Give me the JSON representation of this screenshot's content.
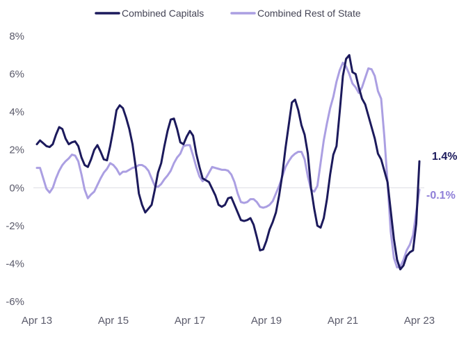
{
  "chart_data": {
    "type": "line",
    "title": "",
    "xlabel": "",
    "ylabel": "",
    "ylim": [
      -6,
      8
    ],
    "y_ticks": [
      "8%",
      "6%",
      "4%",
      "2%",
      "0%",
      "-2%",
      "-4%",
      "-6%"
    ],
    "x_ticks": [
      "Apr 13",
      "Apr 15",
      "Apr 17",
      "Apr 19",
      "Apr 21",
      "Apr 23"
    ],
    "grid": false,
    "legend_position": "top-center",
    "series": [
      {
        "name": "Combined Capitals",
        "color": "#1c1a5c",
        "end_label": "1.4%",
        "points": [
          [
            0,
            2.3
          ],
          [
            1,
            2.5
          ],
          [
            2,
            2.35
          ],
          [
            3,
            2.2
          ],
          [
            4,
            2.15
          ],
          [
            5,
            2.3
          ],
          [
            6,
            2.8
          ],
          [
            7,
            3.2
          ],
          [
            8,
            3.1
          ],
          [
            9,
            2.6
          ],
          [
            10,
            2.3
          ],
          [
            11,
            2.4
          ],
          [
            12,
            2.45
          ],
          [
            13,
            2.2
          ],
          [
            14,
            1.6
          ],
          [
            15,
            1.2
          ],
          [
            16,
            1.1
          ],
          [
            17,
            1.5
          ],
          [
            18,
            2.0
          ],
          [
            19,
            2.25
          ],
          [
            20,
            1.9
          ],
          [
            21,
            1.5
          ],
          [
            22,
            1.45
          ],
          [
            23,
            2.2
          ],
          [
            24,
            3.1
          ],
          [
            25,
            4.1
          ],
          [
            26,
            4.35
          ],
          [
            27,
            4.2
          ],
          [
            28,
            3.7
          ],
          [
            29,
            3.1
          ],
          [
            30,
            2.3
          ],
          [
            31,
            1.1
          ],
          [
            32,
            -0.3
          ],
          [
            33,
            -0.9
          ],
          [
            34,
            -1.3
          ],
          [
            35,
            -1.1
          ],
          [
            36,
            -0.9
          ],
          [
            37,
            -0.1
          ],
          [
            38,
            0.8
          ],
          [
            39,
            1.3
          ],
          [
            40,
            2.2
          ],
          [
            41,
            3.0
          ],
          [
            42,
            3.6
          ],
          [
            43,
            3.65
          ],
          [
            44,
            3.1
          ],
          [
            45,
            2.4
          ],
          [
            46,
            2.3
          ],
          [
            47,
            2.7
          ],
          [
            48,
            3.0
          ],
          [
            49,
            2.75
          ],
          [
            50,
            1.8
          ],
          [
            51,
            1.1
          ],
          [
            52,
            0.5
          ],
          [
            53,
            0.4
          ],
          [
            54,
            0.3
          ],
          [
            55,
            -0.05
          ],
          [
            56,
            -0.4
          ],
          [
            57,
            -0.9
          ],
          [
            58,
            -1.0
          ],
          [
            59,
            -0.9
          ],
          [
            60,
            -0.55
          ],
          [
            61,
            -0.5
          ],
          [
            62,
            -0.9
          ],
          [
            63,
            -1.3
          ],
          [
            64,
            -1.7
          ],
          [
            65,
            -1.75
          ],
          [
            66,
            -1.7
          ],
          [
            67,
            -1.6
          ],
          [
            68,
            -1.95
          ],
          [
            69,
            -2.6
          ],
          [
            70,
            -3.3
          ],
          [
            71,
            -3.25
          ],
          [
            72,
            -2.8
          ],
          [
            73,
            -2.2
          ],
          [
            74,
            -1.8
          ],
          [
            75,
            -1.3
          ],
          [
            76,
            -0.4
          ],
          [
            77,
            0.7
          ],
          [
            78,
            2.1
          ],
          [
            79,
            3.3
          ],
          [
            80,
            4.5
          ],
          [
            81,
            4.65
          ],
          [
            82,
            4.1
          ],
          [
            83,
            3.3
          ],
          [
            84,
            2.8
          ],
          [
            85,
            1.8
          ],
          [
            86,
            0.0
          ],
          [
            87,
            -1.1
          ],
          [
            88,
            -2.0
          ],
          [
            89,
            -2.1
          ],
          [
            90,
            -1.6
          ],
          [
            91,
            -0.6
          ],
          [
            92,
            0.7
          ],
          [
            93,
            1.75
          ],
          [
            94,
            2.2
          ],
          [
            95,
            4.0
          ],
          [
            96,
            5.9
          ],
          [
            97,
            6.8
          ],
          [
            98,
            7.0
          ],
          [
            99,
            6.1
          ],
          [
            100,
            6.0
          ],
          [
            101,
            5.3
          ],
          [
            102,
            4.7
          ],
          [
            103,
            4.4
          ],
          [
            104,
            3.8
          ],
          [
            105,
            3.2
          ],
          [
            106,
            2.6
          ],
          [
            107,
            1.8
          ],
          [
            108,
            1.5
          ],
          [
            109,
            0.9
          ],
          [
            110,
            0.3
          ],
          [
            111,
            -1.2
          ],
          [
            112,
            -2.7
          ],
          [
            113,
            -3.8
          ],
          [
            114,
            -4.3
          ],
          [
            115,
            -4.1
          ],
          [
            116,
            -3.6
          ],
          [
            117,
            -3.4
          ],
          [
            118,
            -3.3
          ],
          [
            119,
            -1.9
          ],
          [
            120,
            1.4
          ]
        ]
      },
      {
        "name": "Combined Rest of State",
        "color": "#ab9fe2",
        "end_label": "-0.1%",
        "points": [
          [
            0,
            1.05
          ],
          [
            1,
            1.05
          ],
          [
            2,
            0.5
          ],
          [
            3,
            -0.05
          ],
          [
            4,
            -0.25
          ],
          [
            5,
            0.0
          ],
          [
            6,
            0.5
          ],
          [
            7,
            0.9
          ],
          [
            8,
            1.2
          ],
          [
            9,
            1.4
          ],
          [
            10,
            1.55
          ],
          [
            11,
            1.75
          ],
          [
            12,
            1.7
          ],
          [
            13,
            1.4
          ],
          [
            14,
            0.7
          ],
          [
            15,
            -0.1
          ],
          [
            16,
            -0.55
          ],
          [
            17,
            -0.35
          ],
          [
            18,
            -0.2
          ],
          [
            19,
            0.15
          ],
          [
            20,
            0.5
          ],
          [
            21,
            0.8
          ],
          [
            22,
            1.0
          ],
          [
            23,
            1.3
          ],
          [
            24,
            1.2
          ],
          [
            25,
            1.0
          ],
          [
            26,
            0.7
          ],
          [
            27,
            0.85
          ],
          [
            28,
            0.85
          ],
          [
            29,
            0.95
          ],
          [
            30,
            1.05
          ],
          [
            31,
            1.1
          ],
          [
            32,
            1.2
          ],
          [
            33,
            1.2
          ],
          [
            34,
            1.1
          ],
          [
            35,
            0.9
          ],
          [
            36,
            0.5
          ],
          [
            37,
            0.1
          ],
          [
            38,
            0.05
          ],
          [
            39,
            0.2
          ],
          [
            40,
            0.45
          ],
          [
            41,
            0.65
          ],
          [
            42,
            0.9
          ],
          [
            43,
            1.3
          ],
          [
            44,
            1.6
          ],
          [
            45,
            1.8
          ],
          [
            46,
            2.2
          ],
          [
            47,
            2.25
          ],
          [
            48,
            2.25
          ],
          [
            49,
            1.7
          ],
          [
            50,
            1.1
          ],
          [
            51,
            0.6
          ],
          [
            52,
            0.35
          ],
          [
            53,
            0.5
          ],
          [
            54,
            0.8
          ],
          [
            55,
            1.1
          ],
          [
            56,
            1.05
          ],
          [
            57,
            1.0
          ],
          [
            58,
            0.95
          ],
          [
            59,
            0.95
          ],
          [
            60,
            0.9
          ],
          [
            61,
            0.7
          ],
          [
            62,
            0.3
          ],
          [
            63,
            -0.3
          ],
          [
            64,
            -0.75
          ],
          [
            65,
            -0.8
          ],
          [
            66,
            -0.75
          ],
          [
            67,
            -0.6
          ],
          [
            68,
            -0.6
          ],
          [
            69,
            -0.75
          ],
          [
            70,
            -1.0
          ],
          [
            71,
            -1.05
          ],
          [
            72,
            -1.0
          ],
          [
            73,
            -0.9
          ],
          [
            74,
            -0.7
          ],
          [
            75,
            -0.3
          ],
          [
            76,
            0.1
          ],
          [
            77,
            0.6
          ],
          [
            78,
            1.1
          ],
          [
            79,
            1.4
          ],
          [
            80,
            1.65
          ],
          [
            81,
            1.8
          ],
          [
            82,
            1.9
          ],
          [
            83,
            1.9
          ],
          [
            84,
            1.5
          ],
          [
            85,
            0.6
          ],
          [
            86,
            -0.1
          ],
          [
            87,
            -0.2
          ],
          [
            88,
            0.1
          ],
          [
            89,
            1.3
          ],
          [
            90,
            2.5
          ],
          [
            91,
            3.4
          ],
          [
            92,
            4.2
          ],
          [
            93,
            4.8
          ],
          [
            94,
            5.6
          ],
          [
            95,
            6.2
          ],
          [
            96,
            6.6
          ],
          [
            97,
            6.4
          ],
          [
            98,
            6.0
          ],
          [
            99,
            5.5
          ],
          [
            100,
            5.3
          ],
          [
            101,
            5.0
          ],
          [
            102,
            5.3
          ],
          [
            103,
            5.8
          ],
          [
            104,
            6.3
          ],
          [
            105,
            6.25
          ],
          [
            106,
            5.9
          ],
          [
            107,
            5.1
          ],
          [
            108,
            4.7
          ],
          [
            109,
            2.7
          ],
          [
            110,
            0.3
          ],
          [
            111,
            -2.3
          ],
          [
            112,
            -3.7
          ],
          [
            113,
            -4.2
          ],
          [
            114,
            -4.15
          ],
          [
            115,
            -3.8
          ],
          [
            116,
            -3.3
          ],
          [
            117,
            -3.0
          ],
          [
            118,
            -2.5
          ],
          [
            119,
            -1.3
          ],
          [
            120,
            -0.1
          ]
        ]
      }
    ]
  }
}
